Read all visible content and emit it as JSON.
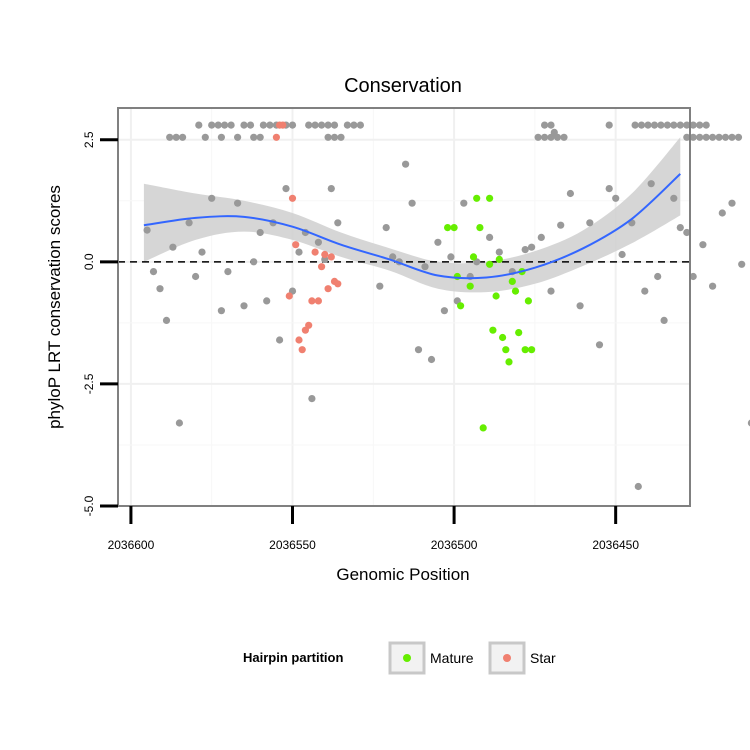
{
  "chart_data": {
    "type": "scatter",
    "title": "Conservation",
    "xlabel": "Genomic Position",
    "ylabel": "phyloP LRT conservation scores",
    "x_reversed": true,
    "xlim": [
      2036604,
      2036427
    ],
    "ylim": [
      -5.0,
      3.15
    ],
    "x_ticks": [
      2036600,
      2036550,
      2036500,
      2036450
    ],
    "x_tick_labels": [
      "2036600",
      "2036550",
      "2036500",
      "2036450"
    ],
    "y_ticks": [
      -5.0,
      -2.5,
      0.0,
      2.5
    ],
    "y_tick_labels": [
      "-5.0",
      "-2.5",
      "0.0",
      "2.5"
    ],
    "reference_line": {
      "y": 0,
      "style": "dashed"
    },
    "legend": {
      "title": "Hairpin partition",
      "placement": "bottom",
      "entries": [
        {
          "label": "Mature",
          "color": "#66ee00"
        },
        {
          "label": "Star",
          "color": "#f08070"
        }
      ]
    },
    "smooth": {
      "color": "#3366ff",
      "band_color": "#cfcfcf",
      "x": [
        2036596,
        2036580,
        2036565,
        2036550,
        2036535,
        2036520,
        2036505,
        2036490,
        2036475,
        2036460,
        2036445,
        2036430
      ],
      "y": [
        0.75,
        0.9,
        0.92,
        0.72,
        0.35,
        0.05,
        -0.28,
        -0.32,
        -0.12,
        0.28,
        0.88,
        1.8
      ],
      "lower": [
        0.0,
        0.45,
        0.62,
        0.45,
        0.1,
        -0.18,
        -0.55,
        -0.62,
        -0.45,
        -0.08,
        0.38,
        0.95
      ],
      "upper": [
        1.6,
        1.4,
        1.25,
        1.0,
        0.6,
        0.28,
        0.0,
        0.0,
        0.22,
        0.65,
        1.4,
        2.55
      ]
    },
    "series": [
      {
        "name": "",
        "color": "#999999",
        "points": [
          [
            2036588,
            2.55
          ],
          [
            2036586,
            2.55
          ],
          [
            2036584,
            2.55
          ],
          [
            2036577,
            2.55
          ],
          [
            2036572,
            2.55
          ],
          [
            2036567,
            2.55
          ],
          [
            2036562,
            2.55
          ],
          [
            2036560,
            2.55
          ],
          [
            2036539,
            2.55
          ],
          [
            2036537,
            2.55
          ],
          [
            2036535,
            2.55
          ],
          [
            2036474,
            2.55
          ],
          [
            2036472,
            2.55
          ],
          [
            2036470,
            2.55
          ],
          [
            2036468,
            2.55
          ],
          [
            2036466,
            2.55
          ],
          [
            2036428,
            2.55
          ],
          [
            2036426,
            2.55
          ],
          [
            2036424,
            2.55
          ],
          [
            2036422,
            2.55
          ],
          [
            2036420,
            2.55
          ],
          [
            2036418,
            2.55
          ],
          [
            2036416,
            2.55
          ],
          [
            2036414,
            2.55
          ],
          [
            2036412,
            2.55
          ],
          [
            2036579,
            2.8
          ],
          [
            2036575,
            2.8
          ],
          [
            2036573,
            2.8
          ],
          [
            2036571,
            2.8
          ],
          [
            2036569,
            2.8
          ],
          [
            2036565,
            2.8
          ],
          [
            2036563,
            2.8
          ],
          [
            2036559,
            2.8
          ],
          [
            2036557,
            2.8
          ],
          [
            2036555,
            2.8
          ],
          [
            2036552,
            2.8
          ],
          [
            2036550,
            2.8
          ],
          [
            2036545,
            2.8
          ],
          [
            2036543,
            2.8
          ],
          [
            2036541,
            2.8
          ],
          [
            2036539,
            2.8
          ],
          [
            2036537,
            2.8
          ],
          [
            2036533,
            2.8
          ],
          [
            2036531,
            2.8
          ],
          [
            2036529,
            2.8
          ],
          [
            2036472,
            2.8
          ],
          [
            2036470,
            2.8
          ],
          [
            2036452,
            2.8
          ],
          [
            2036444,
            2.8
          ],
          [
            2036442,
            2.8
          ],
          [
            2036440,
            2.8
          ],
          [
            2036438,
            2.8
          ],
          [
            2036436,
            2.8
          ],
          [
            2036434,
            2.8
          ],
          [
            2036432,
            2.8
          ],
          [
            2036430,
            2.8
          ],
          [
            2036428,
            2.8
          ],
          [
            2036426,
            2.8
          ],
          [
            2036424,
            2.8
          ],
          [
            2036422,
            2.8
          ],
          [
            2036469,
            2.65
          ],
          [
            2036595,
            0.65
          ],
          [
            2036593,
            -0.2
          ],
          [
            2036591,
            -0.55
          ],
          [
            2036589,
            -1.2
          ],
          [
            2036587,
            0.3
          ],
          [
            2036585,
            -3.3
          ],
          [
            2036582,
            0.8
          ],
          [
            2036580,
            -0.3
          ],
          [
            2036578,
            0.2
          ],
          [
            2036575,
            1.3
          ],
          [
            2036572,
            -1.0
          ],
          [
            2036570,
            -0.2
          ],
          [
            2036567,
            1.2
          ],
          [
            2036565,
            -0.9
          ],
          [
            2036562,
            0.0
          ],
          [
            2036560,
            0.6
          ],
          [
            2036558,
            -0.8
          ],
          [
            2036556,
            0.8
          ],
          [
            2036554,
            -1.6
          ],
          [
            2036552,
            1.5
          ],
          [
            2036550,
            -0.6
          ],
          [
            2036548,
            0.2
          ],
          [
            2036546,
            0.6
          ],
          [
            2036544,
            -2.8
          ],
          [
            2036542,
            0.4
          ],
          [
            2036540,
            0.05
          ],
          [
            2036538,
            1.5
          ],
          [
            2036536,
            0.8
          ],
          [
            2036523,
            -0.5
          ],
          [
            2036521,
            0.7
          ],
          [
            2036519,
            0.1
          ],
          [
            2036517,
            0.0
          ],
          [
            2036515,
            2.0
          ],
          [
            2036513,
            1.2
          ],
          [
            2036511,
            -1.8
          ],
          [
            2036509,
            -0.1
          ],
          [
            2036507,
            -2.0
          ],
          [
            2036505,
            0.4
          ],
          [
            2036503,
            -1.0
          ],
          [
            2036501,
            0.1
          ],
          [
            2036499,
            -0.8
          ],
          [
            2036497,
            1.2
          ],
          [
            2036495,
            -0.3
          ],
          [
            2036493,
            0.0
          ],
          [
            2036489,
            0.5
          ],
          [
            2036486,
            0.2
          ],
          [
            2036482,
            -0.2
          ],
          [
            2036478,
            0.25
          ],
          [
            2036476,
            0.3
          ],
          [
            2036473,
            0.5
          ],
          [
            2036470,
            -0.6
          ],
          [
            2036467,
            0.75
          ],
          [
            2036464,
            1.4
          ],
          [
            2036461,
            -0.9
          ],
          [
            2036458,
            0.8
          ],
          [
            2036455,
            -1.7
          ],
          [
            2036452,
            1.5
          ],
          [
            2036450,
            1.3
          ],
          [
            2036448,
            0.15
          ],
          [
            2036445,
            0.8
          ],
          [
            2036443,
            -4.6
          ],
          [
            2036441,
            -0.6
          ],
          [
            2036439,
            1.6
          ],
          [
            2036437,
            -0.3
          ],
          [
            2036435,
            -1.2
          ],
          [
            2036432,
            1.3
          ],
          [
            2036430,
            0.7
          ],
          [
            2036428,
            0.6
          ],
          [
            2036426,
            -0.3
          ],
          [
            2036423,
            0.35
          ],
          [
            2036420,
            -0.5
          ],
          [
            2036417,
            1.0
          ],
          [
            2036414,
            1.2
          ],
          [
            2036411,
            -0.05
          ],
          [
            2036406,
            0.65
          ],
          [
            2036408,
            -3.3
          ]
        ]
      },
      {
        "name": "Mature",
        "color": "#66ee00",
        "points": [
          [
            2036502,
            0.7
          ],
          [
            2036500,
            0.7
          ],
          [
            2036499,
            -0.3
          ],
          [
            2036498,
            -0.9
          ],
          [
            2036495,
            -0.5
          ],
          [
            2036494,
            0.1
          ],
          [
            2036493,
            1.3
          ],
          [
            2036492,
            0.7
          ],
          [
            2036491,
            -3.4
          ],
          [
            2036489,
            1.3
          ],
          [
            2036489,
            -0.05
          ],
          [
            2036488,
            -1.4
          ],
          [
            2036487,
            -0.7
          ],
          [
            2036486,
            0.05
          ],
          [
            2036485,
            -1.55
          ],
          [
            2036484,
            -1.8
          ],
          [
            2036483,
            -2.05
          ],
          [
            2036482,
            -0.4
          ],
          [
            2036481,
            -0.6
          ],
          [
            2036480,
            -1.45
          ],
          [
            2036479,
            -0.2
          ],
          [
            2036478,
            -1.8
          ],
          [
            2036477,
            -0.8
          ],
          [
            2036476,
            -1.8
          ]
        ]
      },
      {
        "name": "Star",
        "color": "#f08070",
        "points": [
          [
            2036555,
            2.55
          ],
          [
            2036554,
            2.8
          ],
          [
            2036553,
            2.8
          ],
          [
            2036551,
            -0.7
          ],
          [
            2036550,
            1.3
          ],
          [
            2036549,
            0.35
          ],
          [
            2036548,
            -1.6
          ],
          [
            2036547,
            -1.8
          ],
          [
            2036546,
            -1.4
          ],
          [
            2036545,
            -1.3
          ],
          [
            2036544,
            -0.8
          ],
          [
            2036543,
            0.2
          ],
          [
            2036542,
            -0.8
          ],
          [
            2036541,
            -0.1
          ],
          [
            2036540,
            0.15
          ],
          [
            2036539,
            -0.55
          ],
          [
            2036538,
            0.1
          ],
          [
            2036537,
            -0.4
          ],
          [
            2036536,
            -0.45
          ]
        ]
      }
    ]
  }
}
